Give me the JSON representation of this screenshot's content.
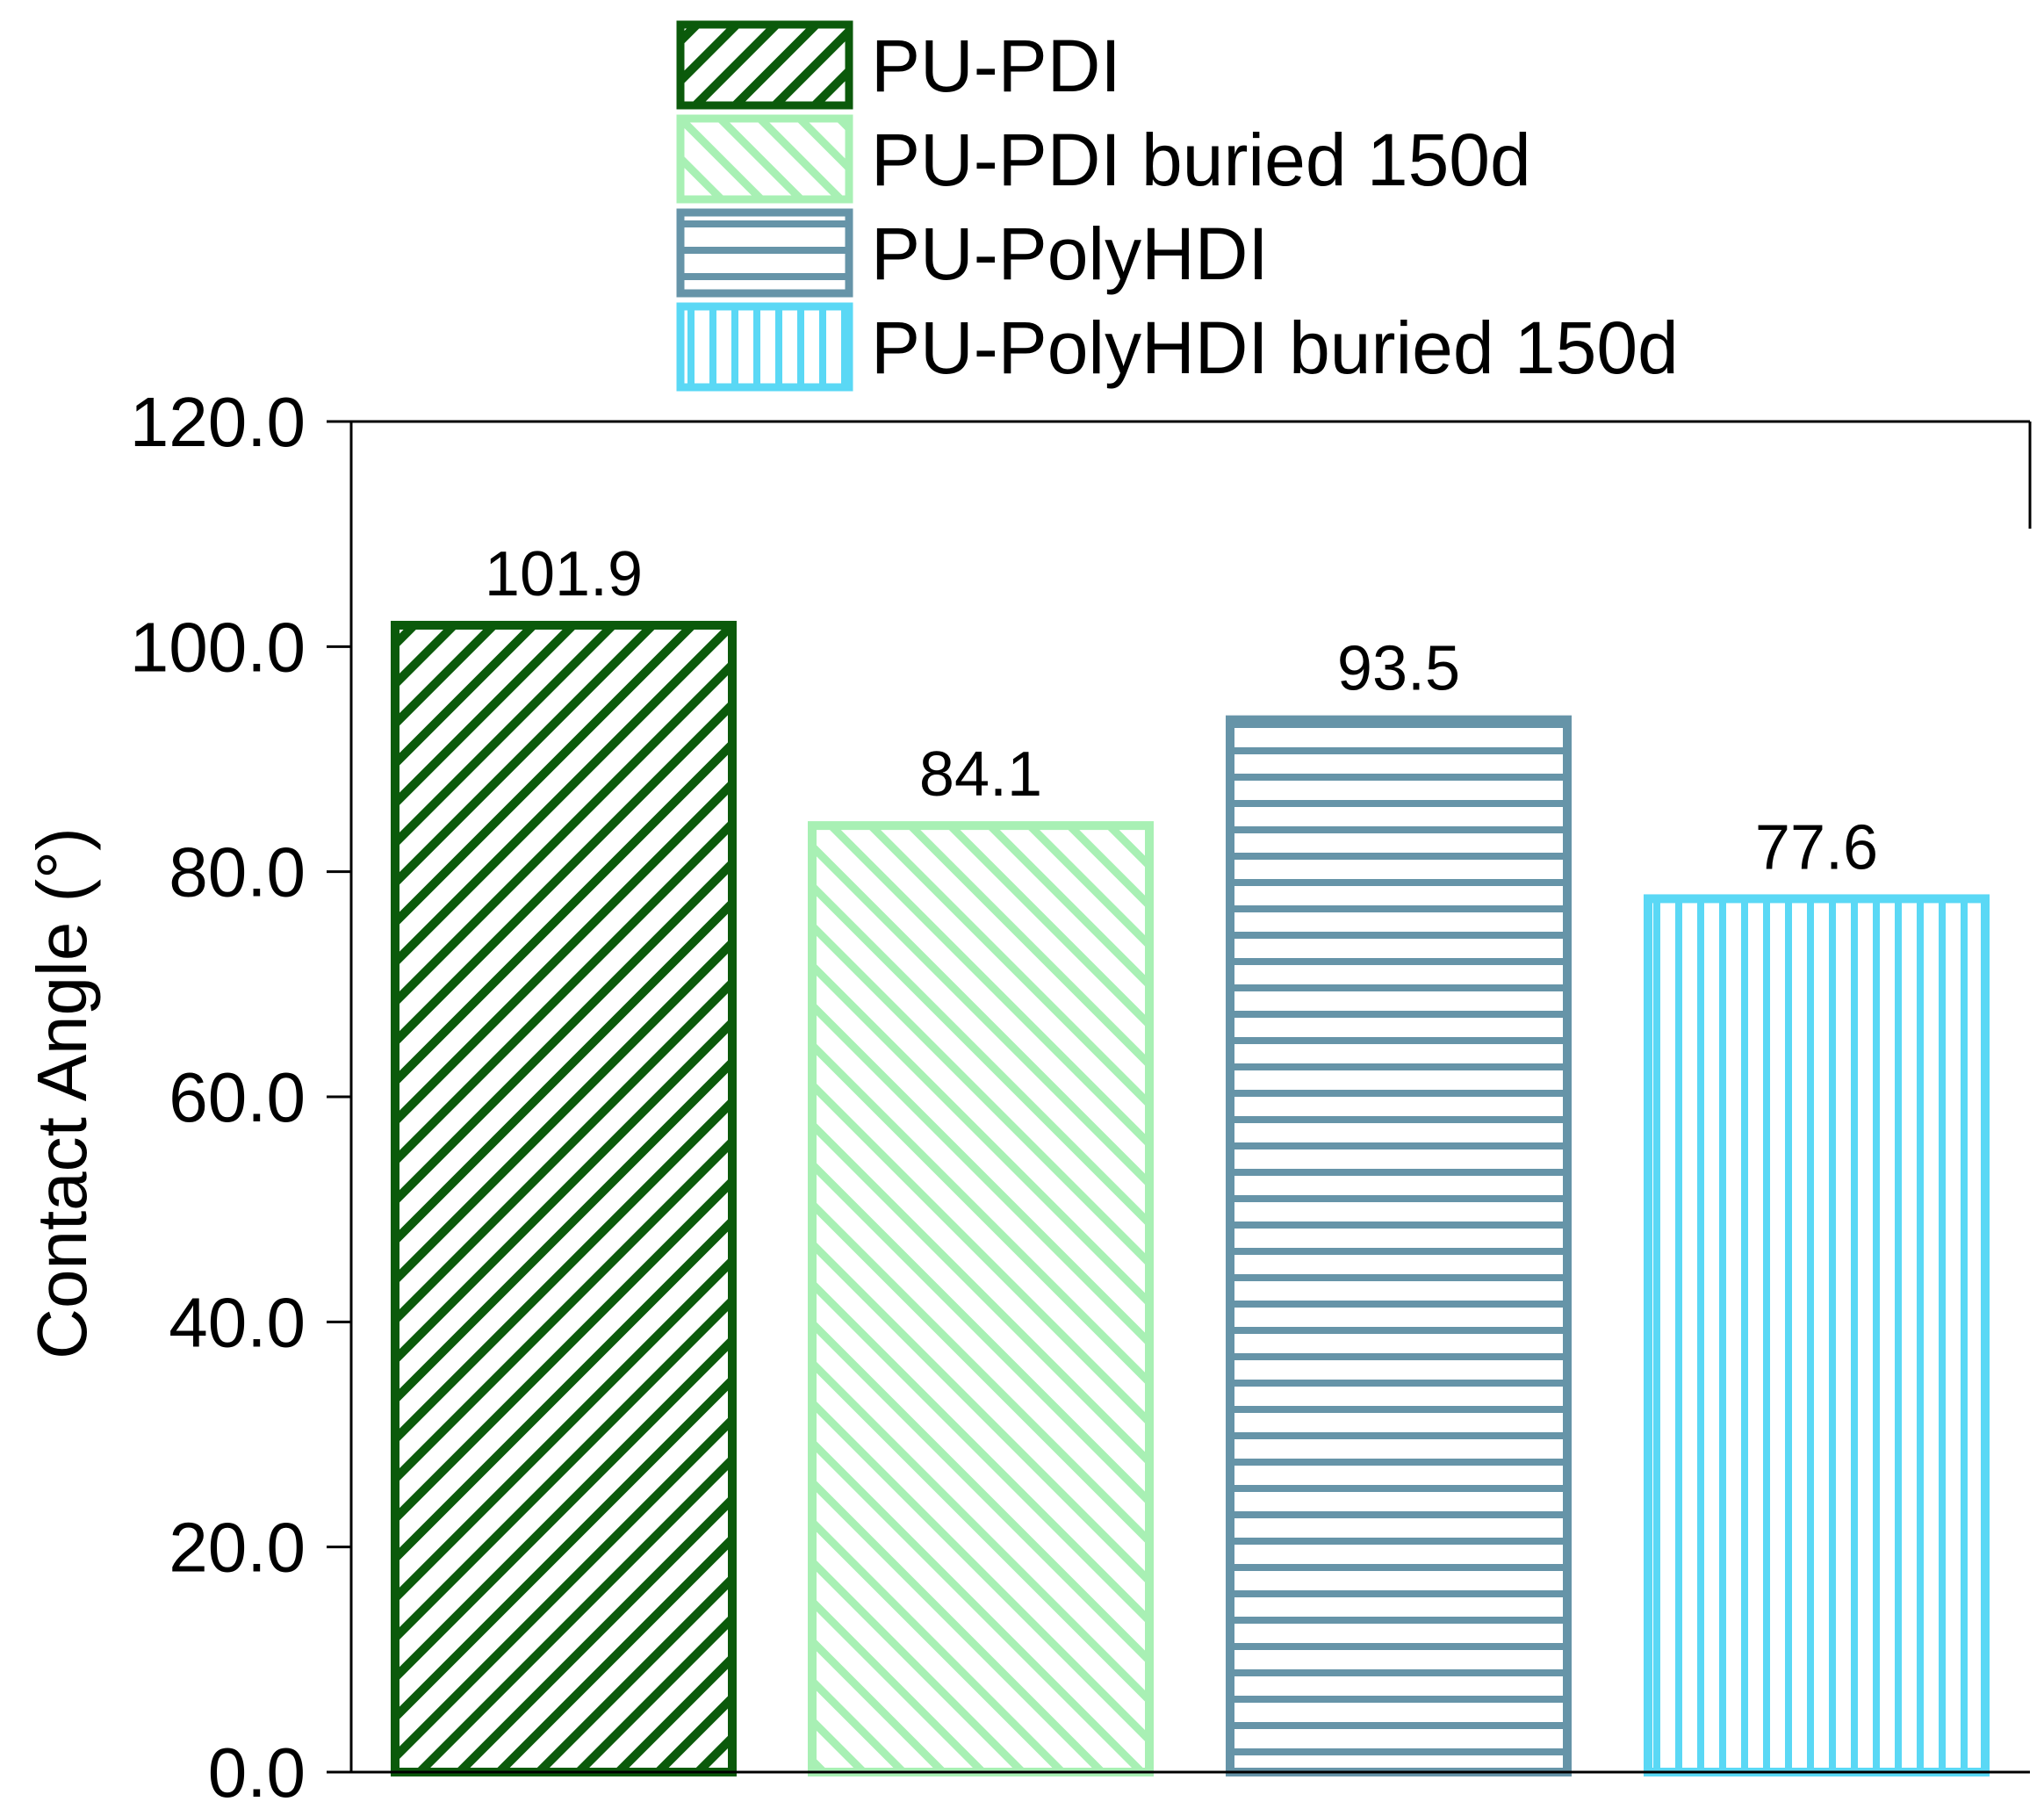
{
  "chart_data": {
    "type": "bar",
    "title": "",
    "xlabel": "",
    "ylabel": "Contact Angle (°)",
    "ylim": [
      0,
      120
    ],
    "yticks": [
      "0.0",
      "20.0",
      "40.0",
      "60.0",
      "80.0",
      "100.0",
      "120.0"
    ],
    "grid": false,
    "legend_position": "top",
    "series": [
      {
        "name": "PU-PDI",
        "value": 101.9,
        "label": "101.9",
        "color": "#0b5a0b",
        "pattern": "diagonal-up"
      },
      {
        "name": "PU-PDI buried 150d",
        "value": 84.1,
        "label": "84.1",
        "color": "#a8f0b4",
        "pattern": "diagonal-down"
      },
      {
        "name": "PU-PolyHDI",
        "value": 93.5,
        "label": "93.5",
        "color": "#6694a8",
        "pattern": "horizontal"
      },
      {
        "name": "PU-PolyHDI buried 150d",
        "value": 77.6,
        "label": "77.6",
        "color": "#5ad8f5",
        "pattern": "vertical"
      }
    ]
  }
}
